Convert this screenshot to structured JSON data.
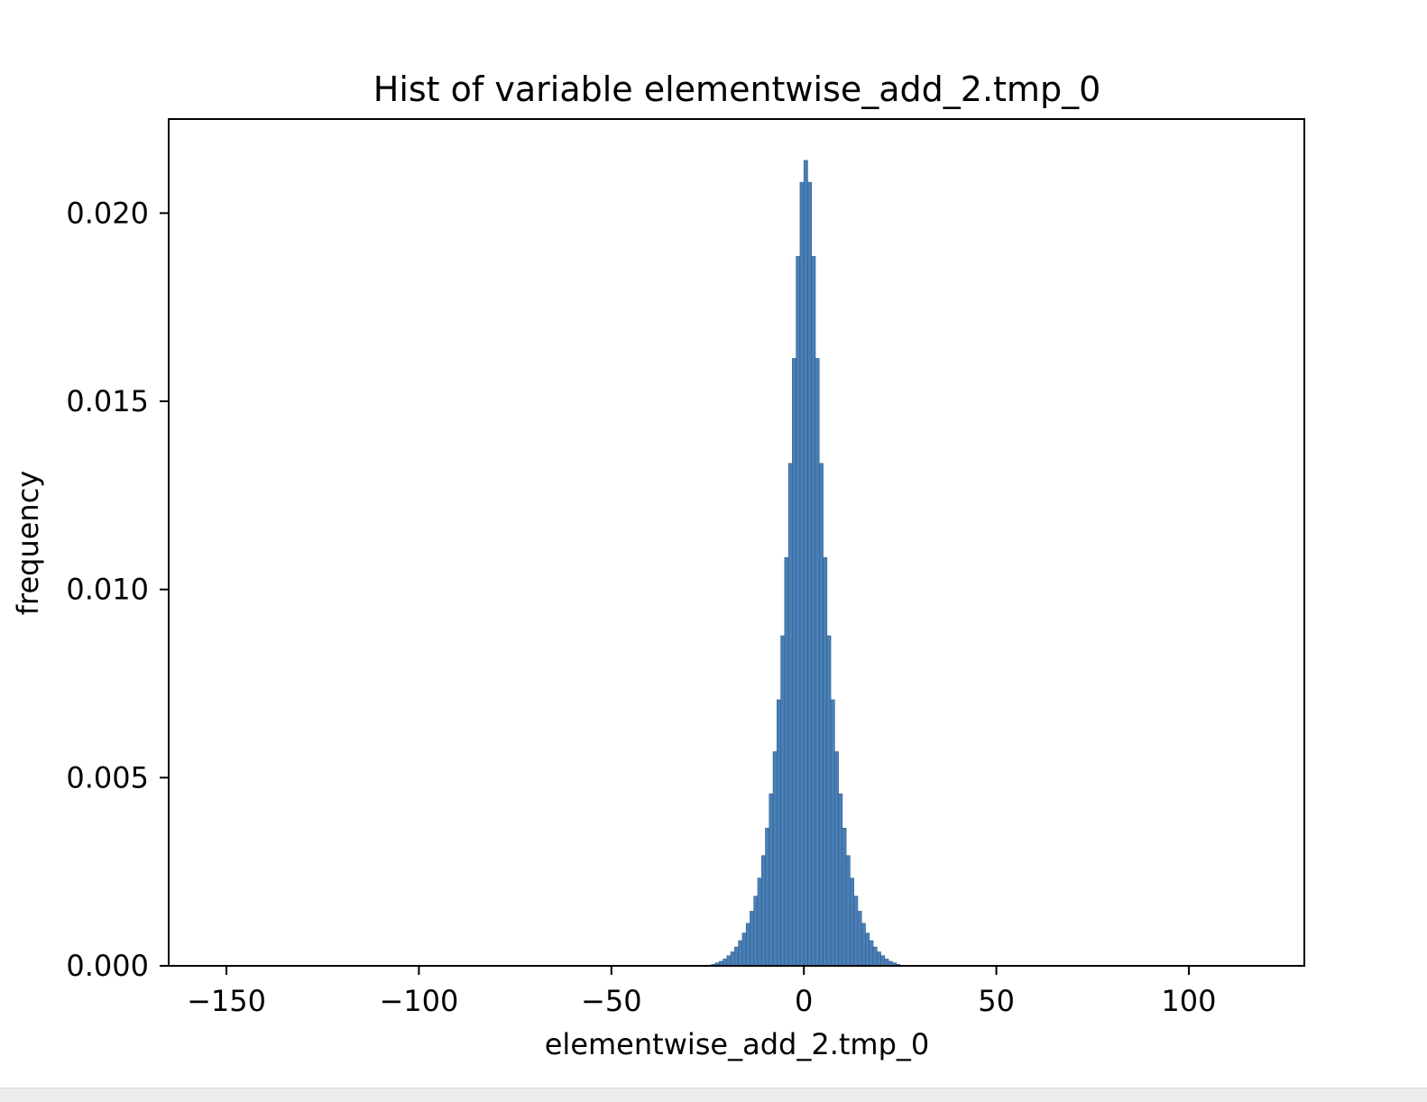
{
  "chart_data": {
    "type": "bar",
    "title": "Hist of variable elementwise_add_2.tmp_0",
    "xlabel": "elementwise_add_2.tmp_0",
    "ylabel": "frequency",
    "xlim": [
      -165,
      130
    ],
    "ylim": [
      0,
      0.0225
    ],
    "x_ticks": [
      -150,
      -100,
      -50,
      0,
      50,
      100
    ],
    "x_tick_labels": [
      "−150",
      "−100",
      "−50",
      "0",
      "50",
      "100"
    ],
    "y_ticks": [
      0,
      0.005,
      0.01,
      0.015,
      0.02
    ],
    "y_tick_labels": [
      "0.000",
      "0.005",
      "0.010",
      "0.015",
      "0.020"
    ],
    "grid": false,
    "bar_color": "#4a7fb5",
    "bar_edge_color": "#2f5f92",
    "bin_width": 1,
    "bins": [
      {
        "x": -25,
        "y": 0.0
      },
      {
        "x": -24,
        "y": 4e-05
      },
      {
        "x": -23,
        "y": 8e-05
      },
      {
        "x": -22,
        "y": 0.00012
      },
      {
        "x": -21,
        "y": 0.00018
      },
      {
        "x": -20,
        "y": 0.00027
      },
      {
        "x": -19,
        "y": 0.00037
      },
      {
        "x": -18,
        "y": 0.0005
      },
      {
        "x": -17,
        "y": 0.00067
      },
      {
        "x": -16,
        "y": 0.00087
      },
      {
        "x": -15,
        "y": 0.00113
      },
      {
        "x": -14,
        "y": 0.00145
      },
      {
        "x": -13,
        "y": 0.00185
      },
      {
        "x": -12,
        "y": 0.00233
      },
      {
        "x": -11,
        "y": 0.00293
      },
      {
        "x": -10,
        "y": 0.00366
      },
      {
        "x": -9,
        "y": 0.00457
      },
      {
        "x": -8,
        "y": 0.00569
      },
      {
        "x": -7,
        "y": 0.00707
      },
      {
        "x": -6,
        "y": 0.00877
      },
      {
        "x": -5,
        "y": 0.01085
      },
      {
        "x": -4,
        "y": 0.01335
      },
      {
        "x": -3,
        "y": 0.01614
      },
      {
        "x": -2,
        "y": 0.01885
      },
      {
        "x": -1,
        "y": 0.02082
      },
      {
        "x": 0,
        "y": 0.0214
      },
      {
        "x": 1,
        "y": 0.02082
      },
      {
        "x": 2,
        "y": 0.01885
      },
      {
        "x": 3,
        "y": 0.01614
      },
      {
        "x": 4,
        "y": 0.01335
      },
      {
        "x": 5,
        "y": 0.01085
      },
      {
        "x": 6,
        "y": 0.00877
      },
      {
        "x": 7,
        "y": 0.00707
      },
      {
        "x": 8,
        "y": 0.00569
      },
      {
        "x": 9,
        "y": 0.00457
      },
      {
        "x": 10,
        "y": 0.00366
      },
      {
        "x": 11,
        "y": 0.00293
      },
      {
        "x": 12,
        "y": 0.00233
      },
      {
        "x": 13,
        "y": 0.00185
      },
      {
        "x": 14,
        "y": 0.00145
      },
      {
        "x": 15,
        "y": 0.00113
      },
      {
        "x": 16,
        "y": 0.00087
      },
      {
        "x": 17,
        "y": 0.00067
      },
      {
        "x": 18,
        "y": 0.0005
      },
      {
        "x": 19,
        "y": 0.00037
      },
      {
        "x": 20,
        "y": 0.00027
      },
      {
        "x": 21,
        "y": 0.00018
      },
      {
        "x": 22,
        "y": 0.00012
      },
      {
        "x": 23,
        "y": 8e-05
      },
      {
        "x": 24,
        "y": 4e-05
      }
    ]
  }
}
